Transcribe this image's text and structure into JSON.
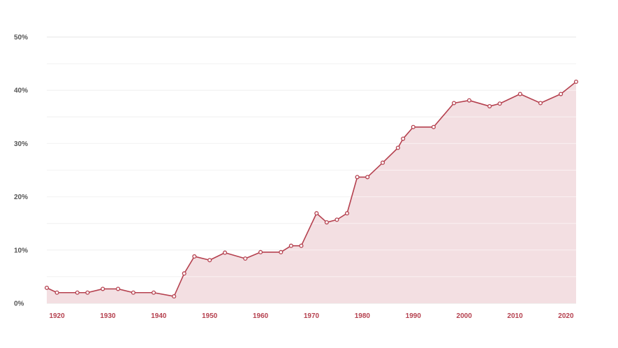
{
  "chart_data": {
    "type": "area",
    "title": "",
    "xlabel": "",
    "ylabel": "",
    "xlim": [
      1918,
      2022
    ],
    "ylim": [
      0,
      50
    ],
    "x_ticks": [
      1920,
      1930,
      1940,
      1950,
      1960,
      1970,
      1980,
      1990,
      2000,
      2010,
      2020
    ],
    "x_tick_labels": [
      "1920",
      "1930",
      "1940",
      "1950",
      "1960",
      "1970",
      "1980",
      "1990",
      "2000",
      "2010",
      "2020"
    ],
    "y_ticks": [
      0,
      10,
      20,
      30,
      40,
      50
    ],
    "y_tick_labels": [
      "0%",
      "10%",
      "20%",
      "30%",
      "40%",
      "50%"
    ],
    "grid": true,
    "legend": "none",
    "series": [
      {
        "color": "#b5414f",
        "fill": "#f3dfe2",
        "points": [
          [
            1918,
            2.9
          ],
          [
            1920,
            2.0
          ],
          [
            1924,
            2.0
          ],
          [
            1926,
            2.0
          ],
          [
            1929,
            2.7
          ],
          [
            1932,
            2.7
          ],
          [
            1935,
            2.0
          ],
          [
            1939,
            2.0
          ],
          [
            1943,
            1.3
          ],
          [
            1945,
            5.6
          ],
          [
            1947,
            8.8
          ],
          [
            1950,
            8.1
          ],
          [
            1953,
            9.5
          ],
          [
            1957,
            8.4
          ],
          [
            1960,
            9.6
          ],
          [
            1964,
            9.6
          ],
          [
            1966,
            10.8
          ],
          [
            1968,
            10.8
          ],
          [
            1971,
            16.9
          ],
          [
            1973,
            15.2
          ],
          [
            1975,
            15.7
          ],
          [
            1977,
            16.9
          ],
          [
            1979,
            23.7
          ],
          [
            1981,
            23.7
          ],
          [
            1984,
            26.4
          ],
          [
            1987,
            29.2
          ],
          [
            1988,
            30.9
          ],
          [
            1990,
            33.1
          ],
          [
            1994,
            33.1
          ],
          [
            1998,
            37.6
          ],
          [
            2001,
            38.1
          ],
          [
            2005,
            37.0
          ],
          [
            2007,
            37.5
          ],
          [
            2011,
            39.3
          ],
          [
            2015,
            37.6
          ],
          [
            2019,
            39.3
          ],
          [
            2022,
            41.6
          ]
        ]
      }
    ]
  }
}
